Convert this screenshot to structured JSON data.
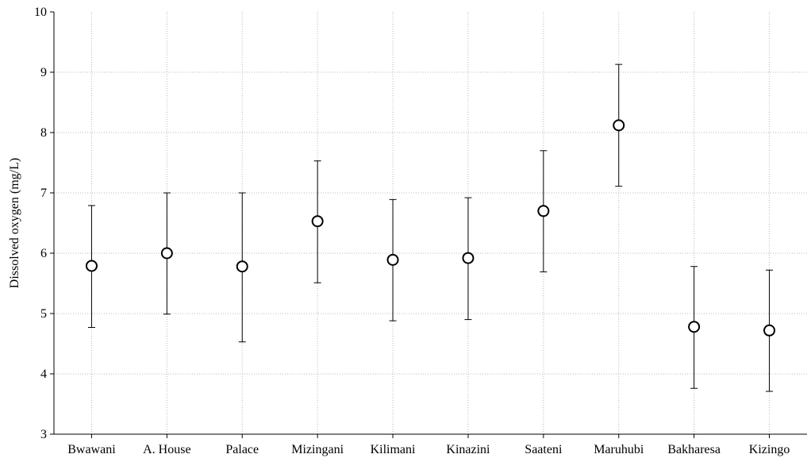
{
  "chart_data": {
    "type": "scatter",
    "title": "",
    "xlabel": "",
    "ylabel": "Dissolved oxygen (mg/L)",
    "ylim": [
      3,
      10
    ],
    "yticks": [
      "3",
      "4",
      "5",
      "6",
      "7",
      "8",
      "9",
      "10"
    ],
    "grid": true,
    "categories": [
      "Bwawani",
      "A. House",
      "Palace",
      "Mizingani",
      "Kilimani",
      "Kinazini",
      "Saateni",
      "Maruhubi",
      "Bakharesa",
      "Kizingo"
    ],
    "series": [
      {
        "values": [
          5.79,
          6.0,
          5.78,
          6.53,
          5.89,
          5.92,
          6.7,
          8.12,
          4.78,
          4.72
        ],
        "lower": [
          4.77,
          4.99,
          4.53,
          5.51,
          4.88,
          4.9,
          5.69,
          7.11,
          3.76,
          3.71
        ],
        "upper": [
          6.79,
          7.0,
          7.0,
          7.53,
          6.89,
          6.92,
          7.7,
          9.13,
          5.78,
          5.72
        ]
      }
    ]
  }
}
